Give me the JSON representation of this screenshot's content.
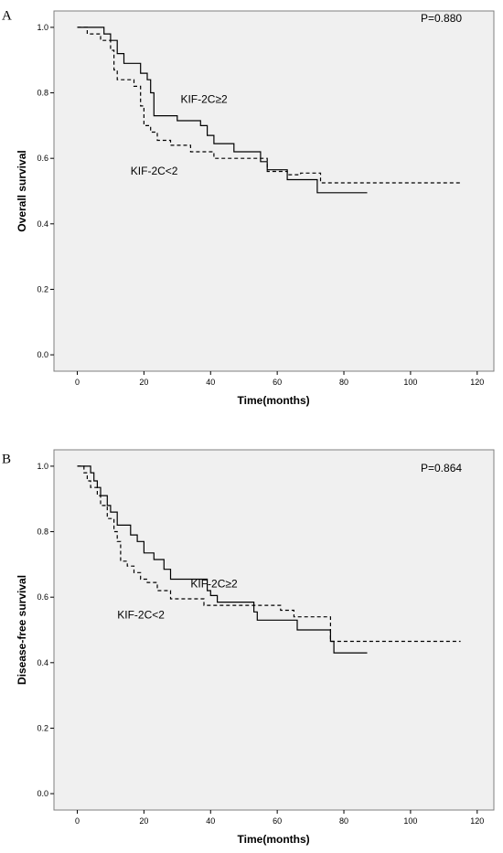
{
  "colors": {
    "plot_bg": "#f0f0f0",
    "frame": "#7f7f7f",
    "line": "#000000"
  },
  "chart_data": [
    {
      "type": "line",
      "panel_label": "A",
      "p_value_text": "P=0.880",
      "xlabel": "Time(months)",
      "ylabel": "Overall survival",
      "xlim": [
        -7,
        125
      ],
      "ylim": [
        -0.05,
        1.05
      ],
      "xticks": [
        0,
        20,
        40,
        60,
        80,
        100,
        120
      ],
      "yticks": [
        0.0,
        0.2,
        0.4,
        0.6,
        0.8,
        1.0
      ],
      "ytick_labels": [
        "0.0",
        "0.2",
        "0.4",
        "0.6",
        "0.8",
        "1.0"
      ],
      "grid": false,
      "annotations": [
        {
          "text": "KIF-2C≥2",
          "x": 31,
          "y": 0.77
        },
        {
          "text": "KIF-2C<2",
          "x": 16,
          "y": 0.55
        }
      ],
      "series": [
        {
          "name": "KIF-2C≥2",
          "style": "solid",
          "points": [
            [
              0,
              1.0
            ],
            [
              8,
              1.0
            ],
            [
              8,
              0.98
            ],
            [
              10,
              0.98
            ],
            [
              10,
              0.96
            ],
            [
              12,
              0.96
            ],
            [
              12,
              0.92
            ],
            [
              14,
              0.92
            ],
            [
              14,
              0.89
            ],
            [
              19,
              0.89
            ],
            [
              19,
              0.86
            ],
            [
              21,
              0.86
            ],
            [
              21,
              0.84
            ],
            [
              22,
              0.84
            ],
            [
              22,
              0.8
            ],
            [
              23,
              0.8
            ],
            [
              23,
              0.73
            ],
            [
              30,
              0.73
            ],
            [
              30,
              0.715
            ],
            [
              37,
              0.715
            ],
            [
              37,
              0.7
            ],
            [
              39,
              0.7
            ],
            [
              39,
              0.67
            ],
            [
              41,
              0.67
            ],
            [
              41,
              0.645
            ],
            [
              47,
              0.645
            ],
            [
              47,
              0.62
            ],
            [
              55,
              0.62
            ],
            [
              55,
              0.59
            ],
            [
              57,
              0.59
            ],
            [
              57,
              0.565
            ],
            [
              63,
              0.565
            ],
            [
              63,
              0.535
            ],
            [
              72,
              0.535
            ],
            [
              72,
              0.495
            ],
            [
              87,
              0.495
            ]
          ]
        },
        {
          "name": "KIF-2C<2",
          "style": "dashed",
          "points": [
            [
              0,
              1.0
            ],
            [
              3,
              1.0
            ],
            [
              3,
              0.98
            ],
            [
              7,
              0.98
            ],
            [
              7,
              0.96
            ],
            [
              10,
              0.96
            ],
            [
              10,
              0.93
            ],
            [
              11,
              0.93
            ],
            [
              11,
              0.87
            ],
            [
              12,
              0.87
            ],
            [
              12,
              0.84
            ],
            [
              17,
              0.84
            ],
            [
              17,
              0.82
            ],
            [
              19,
              0.82
            ],
            [
              19,
              0.76
            ],
            [
              20,
              0.76
            ],
            [
              20,
              0.7
            ],
            [
              22,
              0.7
            ],
            [
              22,
              0.68
            ],
            [
              24,
              0.68
            ],
            [
              24,
              0.655
            ],
            [
              28,
              0.655
            ],
            [
              28,
              0.64
            ],
            [
              34,
              0.64
            ],
            [
              34,
              0.62
            ],
            [
              41,
              0.62
            ],
            [
              41,
              0.6
            ],
            [
              57,
              0.6
            ],
            [
              57,
              0.56
            ],
            [
              63,
              0.56
            ],
            [
              63,
              0.55
            ],
            [
              67,
              0.55
            ],
            [
              67,
              0.555
            ],
            [
              73,
              0.555
            ],
            [
              73,
              0.525
            ],
            [
              115,
              0.525
            ]
          ]
        }
      ]
    },
    {
      "type": "line",
      "panel_label": "B",
      "p_value_text": "P=0.864",
      "xlabel": "Time(months)",
      "ylabel": "Disease-free survival",
      "xlim": [
        -7,
        125
      ],
      "ylim": [
        -0.05,
        1.05
      ],
      "xticks": [
        0,
        20,
        40,
        60,
        80,
        100,
        120
      ],
      "yticks": [
        0.0,
        0.2,
        0.4,
        0.6,
        0.8,
        1.0
      ],
      "ytick_labels": [
        "0.0",
        "0.2",
        "0.4",
        "0.6",
        "0.8",
        "1.0"
      ],
      "grid": false,
      "annotations": [
        {
          "text": "KIF-2C≥2",
          "x": 34,
          "y": 0.63
        },
        {
          "text": "KIF-2C<2",
          "x": 12,
          "y": 0.535
        }
      ],
      "series": [
        {
          "name": "KIF-2C≥2",
          "style": "solid",
          "points": [
            [
              0,
              1.0
            ],
            [
              4,
              1.0
            ],
            [
              4,
              0.98
            ],
            [
              5,
              0.98
            ],
            [
              5,
              0.955
            ],
            [
              6,
              0.955
            ],
            [
              6,
              0.935
            ],
            [
              7,
              0.935
            ],
            [
              7,
              0.91
            ],
            [
              9,
              0.91
            ],
            [
              9,
              0.88
            ],
            [
              10,
              0.88
            ],
            [
              10,
              0.86
            ],
            [
              12,
              0.86
            ],
            [
              12,
              0.82
            ],
            [
              16,
              0.82
            ],
            [
              16,
              0.79
            ],
            [
              18,
              0.79
            ],
            [
              18,
              0.77
            ],
            [
              20,
              0.77
            ],
            [
              20,
              0.735
            ],
            [
              23,
              0.735
            ],
            [
              23,
              0.715
            ],
            [
              26,
              0.715
            ],
            [
              26,
              0.685
            ],
            [
              28,
              0.685
            ],
            [
              28,
              0.655
            ],
            [
              39,
              0.655
            ],
            [
              39,
              0.62
            ],
            [
              40,
              0.62
            ],
            [
              40,
              0.605
            ],
            [
              42,
              0.605
            ],
            [
              42,
              0.585
            ],
            [
              53,
              0.585
            ],
            [
              53,
              0.555
            ],
            [
              54,
              0.555
            ],
            [
              54,
              0.53
            ],
            [
              66,
              0.53
            ],
            [
              66,
              0.5
            ],
            [
              76,
              0.5
            ],
            [
              76,
              0.465
            ],
            [
              77,
              0.465
            ],
            [
              77,
              0.43
            ],
            [
              87,
              0.43
            ]
          ]
        },
        {
          "name": "KIF-2C<2",
          "style": "dashed",
          "points": [
            [
              0,
              1.0
            ],
            [
              2,
              1.0
            ],
            [
              2,
              0.98
            ],
            [
              3,
              0.98
            ],
            [
              3,
              0.955
            ],
            [
              4,
              0.955
            ],
            [
              4,
              0.935
            ],
            [
              6,
              0.935
            ],
            [
              6,
              0.91
            ],
            [
              7,
              0.91
            ],
            [
              7,
              0.88
            ],
            [
              9,
              0.88
            ],
            [
              9,
              0.84
            ],
            [
              11,
              0.84
            ],
            [
              11,
              0.8
            ],
            [
              12,
              0.8
            ],
            [
              12,
              0.77
            ],
            [
              13,
              0.77
            ],
            [
              13,
              0.71
            ],
            [
              15,
              0.71
            ],
            [
              15,
              0.695
            ],
            [
              17,
              0.695
            ],
            [
              17,
              0.675
            ],
            [
              19,
              0.675
            ],
            [
              19,
              0.655
            ],
            [
              21,
              0.655
            ],
            [
              21,
              0.645
            ],
            [
              24,
              0.645
            ],
            [
              24,
              0.62
            ],
            [
              28,
              0.62
            ],
            [
              28,
              0.595
            ],
            [
              38,
              0.595
            ],
            [
              38,
              0.575
            ],
            [
              61,
              0.575
            ],
            [
              61,
              0.56
            ],
            [
              65,
              0.56
            ],
            [
              65,
              0.54
            ],
            [
              76,
              0.54
            ],
            [
              76,
              0.465
            ],
            [
              115,
              0.465
            ]
          ]
        }
      ]
    }
  ]
}
